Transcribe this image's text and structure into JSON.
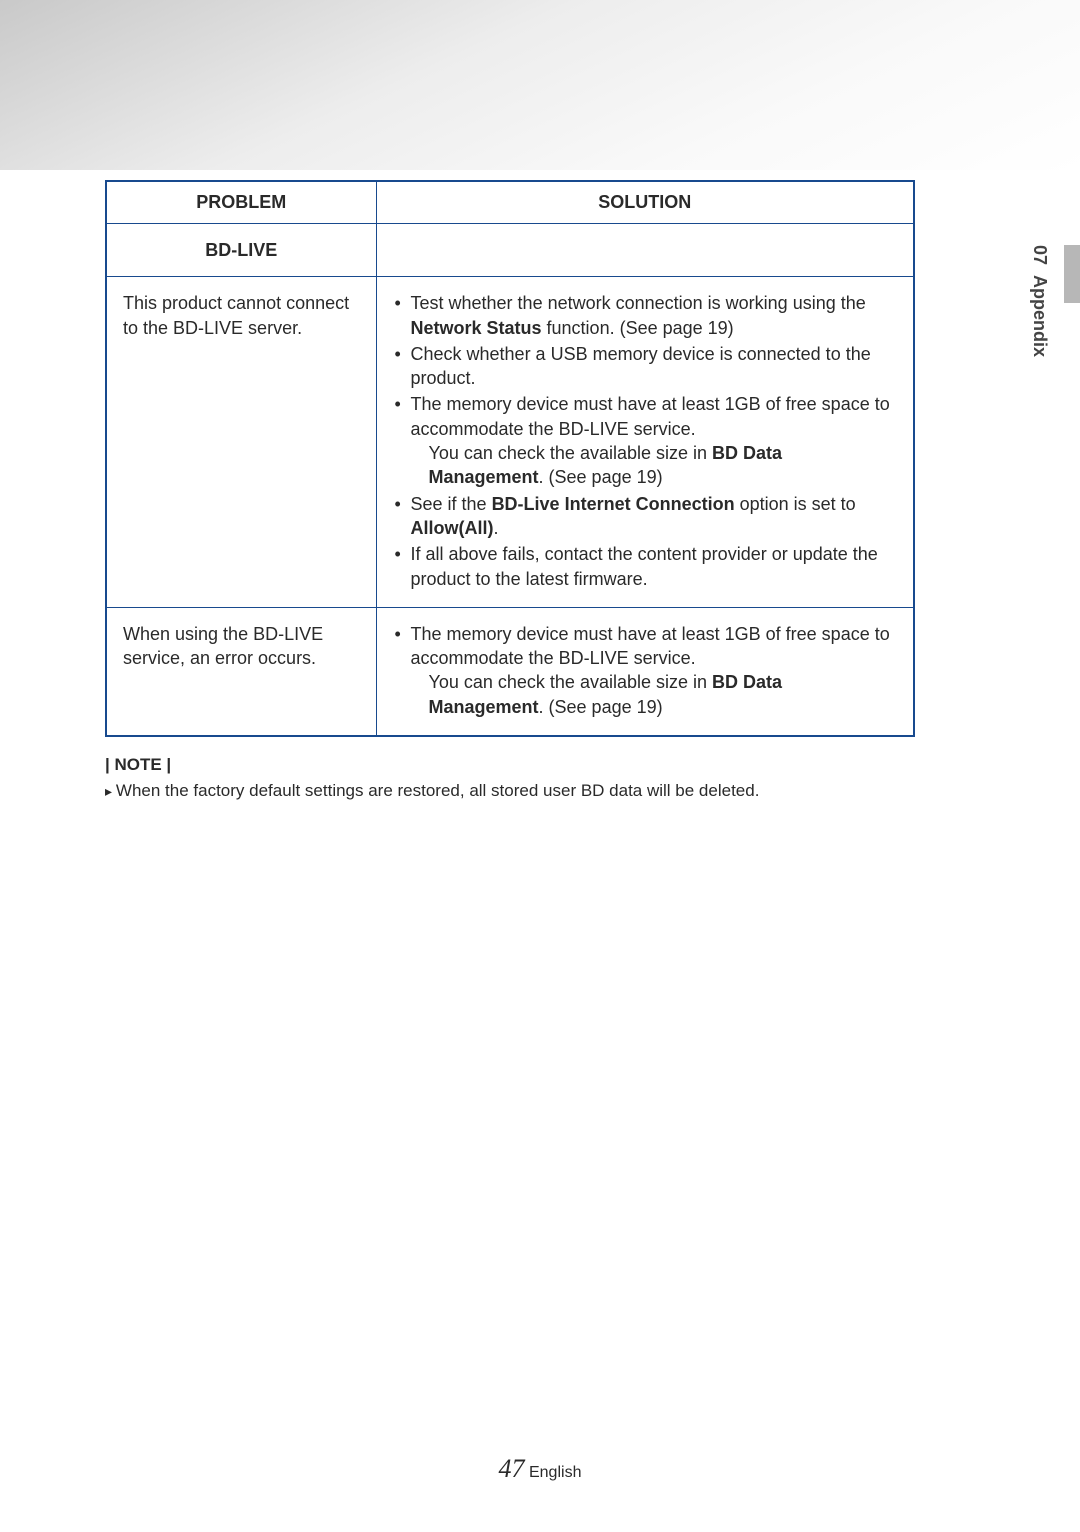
{
  "side": {
    "chapter": "07",
    "name": "Appendix"
  },
  "table": {
    "headers": {
      "problem": "PROBLEM",
      "solution": "SOLUTION"
    },
    "section": "BD-LIVE",
    "rows": [
      {
        "problem": "This product cannot connect to the BD-LIVE server.",
        "sol": {
          "b1_pre": "Test whether the network connection is working using the ",
          "b1_bold": "Network Status",
          "b1_post": " function. (See page 19)",
          "b2": "Check whether a USB memory device is connected to the product.",
          "b3a": "The memory device must have at least 1GB of free space to accommodate the BD-LIVE service.",
          "b3b_pre": "You can check the available size in ",
          "b3b_bold": "BD Data Management",
          "b3b_post": ". (See page 19)",
          "b4_pre": "See if the ",
          "b4_bold1": "BD-Live Internet Connection",
          "b4_mid": " option is set to ",
          "b4_bold2": "Allow(All)",
          "b4_post": ".",
          "b5": "If all above fails, contact the content provider or update the product to the latest firmware."
        }
      },
      {
        "problem": "When using the BD-LIVE service, an error occurs.",
        "sol": {
          "b1a": "The memory device must have at least 1GB of free space to accommodate the BD-LIVE service.",
          "b1b_pre": "You can check the available size in ",
          "b1b_bold": "BD Data Management",
          "b1b_post": ". (See page 19)"
        }
      }
    ]
  },
  "note": {
    "label": "| NOTE |",
    "text": "When the factory default settings are restored, all stored user BD data will be deleted."
  },
  "footer": {
    "page": "47",
    "lang": "English"
  }
}
